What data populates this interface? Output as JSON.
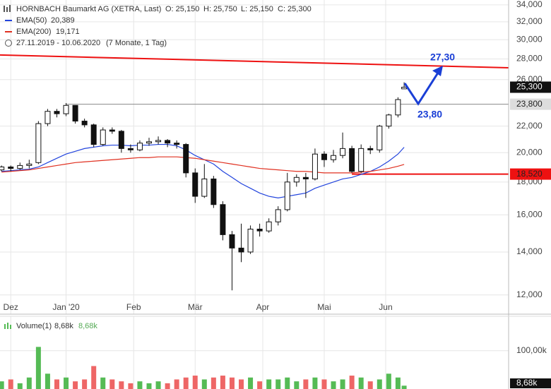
{
  "chart_data": [
    {
      "type": "candlestick",
      "title": "HORNBACH Baumarkt AG (XETRA, Last)",
      "ohlc_labels": [
        "O: 25,150",
        "H: 25,750",
        "L: 25,150",
        "C: 25,300"
      ],
      "date_range": "27.11.2019 - 10.06.2020",
      "period": "(7 Monate, 1 Tag)",
      "log_scale": true,
      "grid": true,
      "up_color": "#ffffff",
      "down_color": "#111111",
      "xlim": [
        -0.5,
        165
      ],
      "xticks": [
        {
          "value": 3,
          "label": "Dez"
        },
        {
          "value": 21,
          "label": "Jan '20"
        },
        {
          "value": 43,
          "label": "Feb"
        },
        {
          "value": 63,
          "label": "Mär"
        },
        {
          "value": 85,
          "label": "Apr"
        },
        {
          "value": 105,
          "label": "Mai"
        },
        {
          "value": 125,
          "label": "Jun"
        }
      ],
      "ylim": [
        11200,
        34600
      ],
      "yticks": [
        {
          "value": 12000,
          "label": "12,000"
        },
        {
          "value": 14000,
          "label": "14,000"
        },
        {
          "value": 16000,
          "label": "16,000"
        },
        {
          "value": 18000,
          "label": "18,000"
        },
        {
          "value": 20000,
          "label": "20,000"
        },
        {
          "value": 22000,
          "label": "22,000"
        },
        {
          "value": 26000,
          "label": "26,000"
        },
        {
          "value": 28000,
          "label": "28,000"
        },
        {
          "value": 30000,
          "label": "30,000"
        },
        {
          "value": 32000,
          "label": "32,000"
        },
        {
          "value": 34000,
          "label": "34,000"
        }
      ],
      "x": [
        0,
        3,
        6,
        9,
        12,
        15,
        18,
        21,
        24,
        27,
        30,
        33,
        36,
        39,
        42,
        45,
        48,
        51,
        54,
        57,
        60,
        63,
        66,
        69,
        72,
        75,
        78,
        81,
        84,
        87,
        90,
        93,
        96,
        99,
        102,
        105,
        108,
        111,
        114,
        117,
        120,
        123,
        126,
        129,
        131
      ],
      "open": [
        18800,
        19000,
        18900,
        19100,
        19300,
        22200,
        23200,
        23000,
        23700,
        22400,
        22100,
        20600,
        21700,
        21600,
        20300,
        20200,
        20700,
        20800,
        20900,
        20700,
        20600,
        18600,
        17100,
        18200,
        16600,
        14900,
        14200,
        14000,
        15200,
        15100,
        15600,
        16300,
        18000,
        18300,
        18200,
        19900,
        19500,
        19800,
        20300,
        18700,
        20300,
        20200,
        22000,
        22900,
        25150
      ],
      "high": [
        19100,
        19100,
        19300,
        19500,
        22400,
        23400,
        23400,
        23900,
        23700,
        22600,
        22200,
        21900,
        21900,
        21700,
        20600,
        20900,
        21100,
        21200,
        21000,
        20900,
        20700,
        18900,
        19200,
        18400,
        16800,
        15100,
        15500,
        15400,
        15500,
        15800,
        16500,
        18600,
        18500,
        18600,
        20300,
        20100,
        20200,
        21500,
        20500,
        20600,
        20500,
        22100,
        23000,
        24400,
        25750
      ],
      "low": [
        18700,
        18700,
        18800,
        18900,
        19200,
        22000,
        22700,
        22800,
        22200,
        21900,
        20400,
        20500,
        21400,
        20000,
        20000,
        20100,
        20500,
        20600,
        20400,
        20300,
        18300,
        16700,
        17000,
        16400,
        14600,
        12200,
        13500,
        13900,
        14800,
        15000,
        15400,
        16200,
        17700,
        17000,
        18100,
        19000,
        19300,
        19600,
        18600,
        18600,
        19900,
        20000,
        21800,
        22700,
        25150
      ],
      "close": [
        19000,
        18900,
        19100,
        19200,
        22200,
        23200,
        23000,
        23700,
        22400,
        22100,
        20600,
        21700,
        21600,
        20300,
        20200,
        20700,
        20800,
        20900,
        20700,
        20600,
        18600,
        17100,
        18200,
        16600,
        14900,
        14200,
        14000,
        15200,
        15100,
        15600,
        16300,
        18000,
        18300,
        18200,
        19900,
        19500,
        19800,
        20300,
        18700,
        20300,
        20200,
        22000,
        22900,
        24200,
        25300
      ],
      "series": [
        {
          "name": "EMA(50)",
          "value_label": "20,389",
          "color": "#2244dd",
          "values": [
            18700,
            18750,
            18800,
            18850,
            19000,
            19300,
            19600,
            19900,
            20100,
            20300,
            20400,
            20500,
            20550,
            20550,
            20500,
            20550,
            20550,
            20600,
            20600,
            20500,
            20200,
            19800,
            19500,
            19200,
            18700,
            18300,
            17900,
            17600,
            17300,
            17100,
            17000,
            17100,
            17200,
            17300,
            17600,
            17800,
            18000,
            18200,
            18300,
            18500,
            18700,
            19000,
            19400,
            19900,
            20389
          ]
        },
        {
          "name": "EMA(200)",
          "value_label": "19,171",
          "color": "#e03020",
          "values": [
            18650,
            18700,
            18750,
            18800,
            18900,
            19000,
            19100,
            19200,
            19300,
            19350,
            19400,
            19450,
            19500,
            19550,
            19600,
            19650,
            19650,
            19700,
            19700,
            19700,
            19650,
            19600,
            19500,
            19400,
            19300,
            19200,
            19100,
            19000,
            18900,
            18850,
            18800,
            18750,
            18700,
            18700,
            18650,
            18600,
            18600,
            18600,
            18600,
            18650,
            18700,
            18800,
            18900,
            19050,
            19171
          ]
        }
      ],
      "last_price": {
        "value": 25300,
        "label": "25,300"
      },
      "price_lines": [
        {
          "value": 23800,
          "label": "23,800",
          "color": "#888888",
          "x_start": 21
        },
        {
          "value": 18520,
          "label": "18,520",
          "color": "#ee1111",
          "x_start": 114
        }
      ],
      "trendline": {
        "x": [
          -0.5,
          165
        ],
        "y": [
          28400,
          27130
        ],
        "color": "#ee1111"
      },
      "annotations": [
        "27,30",
        "23,80"
      ]
    },
    {
      "type": "bar",
      "title": "Volume(1)",
      "header_values": [
        "8,68k",
        "8,68k"
      ],
      "ylim": [
        0,
        190
      ],
      "yticks": [
        {
          "value": 100,
          "label": "100,00k"
        }
      ],
      "last_value": {
        "value": 8.68,
        "label": "8,68k"
      },
      "values": [
        20,
        25,
        15,
        30,
        110,
        40,
        25,
        30,
        20,
        25,
        60,
        30,
        25,
        20,
        15,
        20,
        15,
        20,
        15,
        25,
        30,
        35,
        25,
        30,
        35,
        30,
        25,
        30,
        20,
        25,
        25,
        30,
        20,
        25,
        30,
        25,
        20,
        25,
        35,
        30,
        20,
        25,
        40,
        30,
        8.68
      ],
      "up_color": "#55bb55",
      "down_color": "#ee6666"
    }
  ]
}
